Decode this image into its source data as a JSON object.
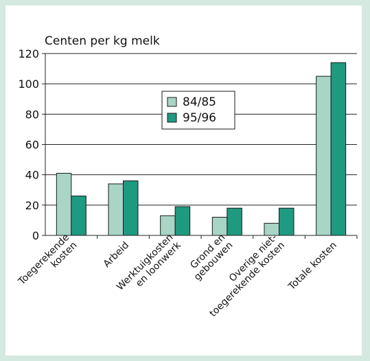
{
  "chart_data": {
    "type": "bar",
    "title": "",
    "xlabel": "",
    "ylabel": "Centen per kg melk",
    "ylim": [
      0,
      120
    ],
    "yticks": [
      0,
      20,
      40,
      60,
      80,
      100,
      120
    ],
    "grid": true,
    "legend": "center",
    "categories": [
      [
        "Toegerekende",
        "kosten"
      ],
      [
        "Arbeid"
      ],
      [
        "Werktuigkosten",
        "en loonwerk"
      ],
      [
        "Grond en",
        "gebouwen"
      ],
      [
        "Overige niet-",
        "toegerekende kosten"
      ],
      [
        "Totale kosten"
      ]
    ],
    "series": [
      {
        "name": "84/85",
        "color": "#a8d5c5",
        "values": [
          41,
          34,
          13,
          12,
          8,
          105
        ]
      },
      {
        "name": "95/96",
        "color": "#1e9a80",
        "values": [
          26,
          36,
          19,
          18,
          18,
          114
        ]
      }
    ]
  }
}
